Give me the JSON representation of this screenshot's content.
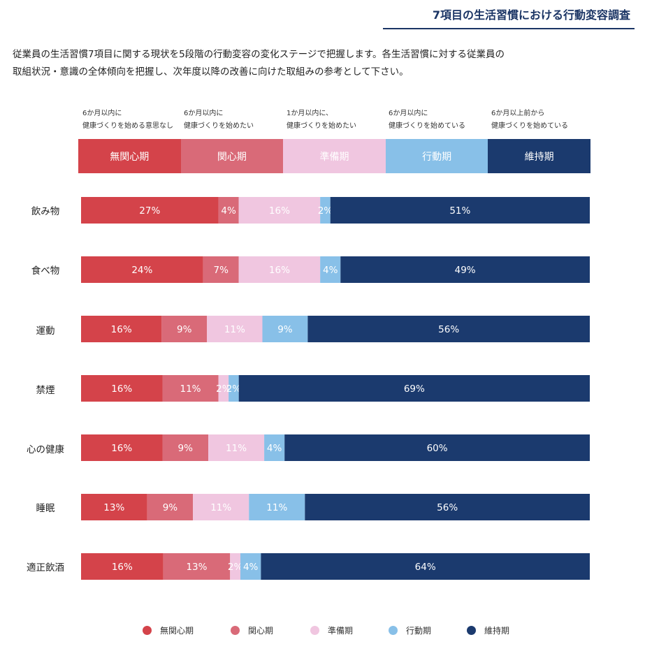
{
  "page": {
    "title": "7項目の生活習慣における行動変容調査",
    "description_lines": [
      "従業員の生活習慣7項目に関する現状を5段階の行動変容の変化ステージで把握します。各生活習慣に対する従業員の",
      "取組状況・意識の全体傾向を把握し、次年度以降の改善に向けた取組みの参考として下さい。"
    ]
  },
  "stages": [
    {
      "name": "無関心期",
      "desc": [
        "6か月以内に",
        "健康づくりを始める意思なし"
      ],
      "color": "#d4434a",
      "text_color": "#ffffff"
    },
    {
      "name": "関心期",
      "desc": [
        "6か月以内に",
        "健康づくりを始めたい"
      ],
      "color": "#d96a78",
      "text_color": "#ffffff"
    },
    {
      "name": "準備期",
      "desc": [
        "1か月以内に、",
        "健康づくりを始めたい"
      ],
      "color": "#f0c6e0",
      "text_color": "#ffffff"
    },
    {
      "name": "行動期",
      "desc": [
        "6か月以内に",
        "健康づくりを始めている"
      ],
      "color": "#88c0e8",
      "text_color": "#ffffff"
    },
    {
      "name": "維持期",
      "desc": [
        "6か月以上前から",
        "健康づくりを始めている"
      ],
      "color": "#1b3a6e",
      "text_color": "#ffffff"
    }
  ],
  "chart_data": {
    "type": "bar",
    "orientation": "horizontal",
    "stacked": true,
    "unit": "%",
    "categories": [
      "飲み物",
      "食べ物",
      "運動",
      "禁煙",
      "心の健康",
      "睡眠",
      "適正飲酒"
    ],
    "series": [
      {
        "name": "無関心期",
        "values": [
          27,
          24,
          16,
          16,
          16,
          13,
          16
        ]
      },
      {
        "name": "関心期",
        "values": [
          4,
          7,
          9,
          11,
          9,
          9,
          13
        ]
      },
      {
        "name": "準備期",
        "values": [
          16,
          16,
          11,
          2,
          11,
          11,
          2
        ]
      },
      {
        "name": "行動期",
        "values": [
          2,
          4,
          9,
          2,
          4,
          11,
          4
        ]
      },
      {
        "name": "維持期",
        "values": [
          51,
          49,
          56,
          69,
          60,
          56,
          64
        ]
      }
    ],
    "legend_position": "bottom",
    "grid": false
  }
}
